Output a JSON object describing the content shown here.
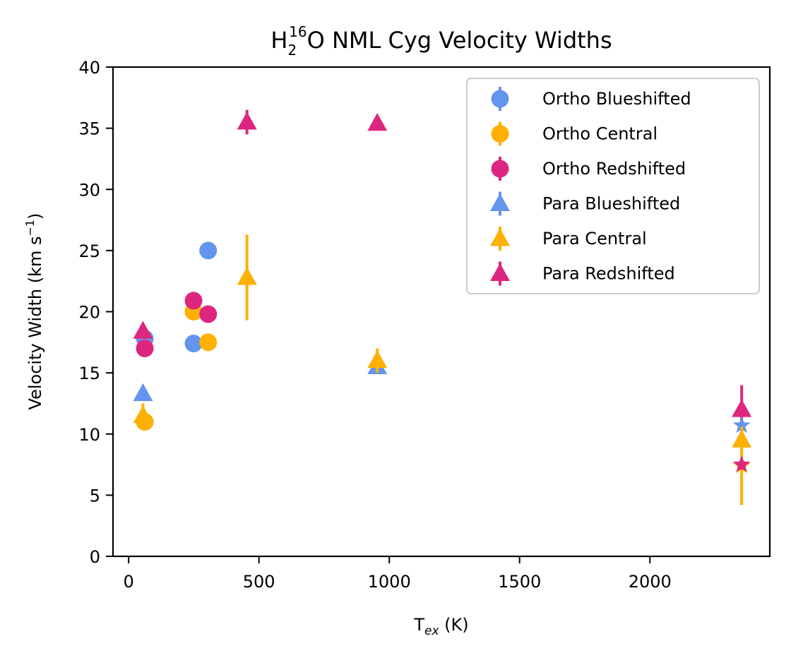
{
  "chart_data": {
    "type": "scatter",
    "title_parts": {
      "base": "H",
      "sub": "2",
      "sup": "16",
      "tail": "O  NML Cyg Velocity Widths"
    },
    "xlabel_parts": {
      "base": "T",
      "sub": "ex",
      "tail": " (K)"
    },
    "ylabel_parts": {
      "head": "Velocity Width (km s",
      "sup": "−1",
      "tail": ")"
    },
    "xlim": [
      -60,
      2460
    ],
    "ylim": [
      0,
      40
    ],
    "xticks": [
      0,
      500,
      1000,
      1500,
      2000
    ],
    "xtick_labels": [
      "0",
      "500",
      "1000",
      "1500",
      "2000"
    ],
    "yticks": [
      0,
      5,
      10,
      15,
      20,
      25,
      30,
      35,
      40
    ],
    "ytick_labels": [
      "0",
      "5",
      "10",
      "15",
      "20",
      "25",
      "30",
      "35",
      "40"
    ],
    "legend_position": "top-right",
    "series": [
      {
        "name": "Ortho Blueshifted",
        "marker": "circle",
        "color": "#6495ED",
        "points": [
          {
            "x": 62,
            "y": 17.8,
            "err": 0
          },
          {
            "x": 249,
            "y": 17.4,
            "err": 0
          },
          {
            "x": 305,
            "y": 25.0,
            "err": 0
          }
        ]
      },
      {
        "name": "Ortho Central",
        "marker": "circle",
        "color": "#FFB000",
        "points": [
          {
            "x": 62,
            "y": 11.0,
            "err": 0
          },
          {
            "x": 249,
            "y": 20.0,
            "err": 0
          },
          {
            "x": 305,
            "y": 17.5,
            "err": 0
          }
        ]
      },
      {
        "name": "Ortho Redshifted",
        "marker": "circle",
        "color": "#DC267F",
        "points": [
          {
            "x": 62,
            "y": 17.0,
            "err": 0
          },
          {
            "x": 249,
            "y": 20.9,
            "err": 0
          },
          {
            "x": 305,
            "y": 19.8,
            "err": 0
          }
        ]
      },
      {
        "name": "Para Blueshifted",
        "marker": "triangle",
        "color": "#6495ED",
        "points": [
          {
            "x": 55,
            "y": 13.3,
            "err": 0
          },
          {
            "x": 954,
            "y": 15.5,
            "err": 0
          }
        ]
      },
      {
        "name": "Para Central",
        "marker": "triangle",
        "color": "#FFB000",
        "points": [
          {
            "x": 55,
            "y": 11.5,
            "err": 1.0
          },
          {
            "x": 454,
            "y": 22.8,
            "err": 3.5
          },
          {
            "x": 954,
            "y": 16.0,
            "err": 1.0
          },
          {
            "x": 2352,
            "y": 9.5,
            "err": 0.7
          }
        ]
      },
      {
        "name": "Para Redshifted",
        "marker": "triangle",
        "color": "#DC267F",
        "points": [
          {
            "x": 55,
            "y": 18.4,
            "err": 0.5
          },
          {
            "x": 454,
            "y": 35.5,
            "err": 1.0
          },
          {
            "x": 954,
            "y": 35.4,
            "err": 0
          },
          {
            "x": 2352,
            "y": 12.0,
            "err": 2.0
          }
        ]
      }
    ],
    "star_points": [
      {
        "x": 2352,
        "y": 10.7,
        "err": 0.5,
        "color": "#6495ED"
      },
      {
        "x": 2352,
        "y": 7.4,
        "err": 3.2,
        "color": "#FFB000"
      },
      {
        "x": 2352,
        "y": 7.5,
        "err": 0.4,
        "color": "#DC267F"
      }
    ]
  }
}
